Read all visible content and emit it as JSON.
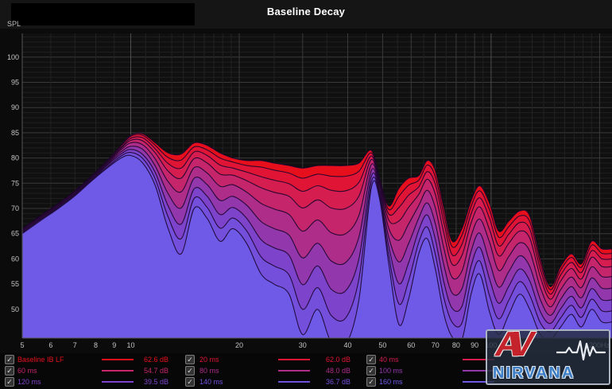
{
  "header": {
    "title": "Baseline Decay"
  },
  "axes": {
    "y_label": "SPL",
    "y_ticks": [
      100,
      95,
      90,
      85,
      80,
      75,
      70,
      65,
      60,
      55,
      50
    ],
    "x_ticks": [
      {
        "f": 5,
        "t": "5"
      },
      {
        "f": 6,
        "t": "6"
      },
      {
        "f": 7,
        "t": "7"
      },
      {
        "f": 8,
        "t": "8"
      },
      {
        "f": 9,
        "t": "9"
      },
      {
        "f": 10,
        "t": "10"
      },
      {
        "f": 20,
        "t": "20"
      },
      {
        "f": 30,
        "t": "30"
      },
      {
        "f": 40,
        "t": "40"
      },
      {
        "f": 50,
        "t": "50"
      },
      {
        "f": 60,
        "t": "60"
      },
      {
        "f": 70,
        "t": "70"
      },
      {
        "f": 80,
        "t": "80"
      },
      {
        "f": 90,
        "t": "90"
      },
      {
        "f": 100,
        "t": "100"
      },
      {
        "f": 200,
        "t": "200Hz"
      }
    ],
    "x_major_lines": [
      5,
      10,
      20,
      30,
      40,
      50,
      60,
      70,
      80,
      90,
      100,
      200
    ],
    "x_minor_lines": [
      6,
      7,
      8,
      9,
      11,
      12,
      13,
      14,
      15,
      16,
      17,
      18,
      19,
      25,
      35,
      45,
      55,
      65,
      75,
      85,
      95,
      110,
      120,
      130,
      140,
      150,
      160,
      170,
      180,
      190
    ]
  },
  "chart_data": {
    "type": "area",
    "title": "Baseline Decay",
    "xlabel": "Hz",
    "ylabel": "SPL (dB)",
    "x_scale": "log",
    "xlim": [
      5,
      208
    ],
    "ylim": [
      44.3,
      104.7
    ],
    "grid": true,
    "legend_position": "bottom",
    "frequencies": [
      5,
      5.6,
      6.3,
      7,
      7.8,
      8.6,
      9.4,
      10,
      10.8,
      11.7,
      12.7,
      13.8,
      15,
      16.3,
      17.7,
      19.2,
      21,
      23,
      25,
      27.5,
      30,
      33,
      36,
      39.5,
      43,
      46.5,
      49,
      52,
      55.5,
      59,
      63,
      66.5,
      70,
      74,
      78,
      83,
      88,
      93,
      99,
      105,
      112,
      120,
      128,
      137,
      146,
      156,
      167,
      178,
      190,
      203
    ],
    "series": [
      {
        "name": "Baseline IB LF",
        "time_ms": 0,
        "color": "#e70f1b",
        "legend_db": "62.6 dB",
        "values": [
          66,
          68.5,
          71,
          73.5,
          76.5,
          79.5,
          82.5,
          84.5,
          84.8,
          83,
          81,
          80.8,
          83,
          82.5,
          81,
          80,
          79.5,
          79.5,
          79,
          78.5,
          78,
          78.5,
          78.5,
          78.5,
          79,
          81.5,
          76,
          70.5,
          74,
          76,
          76.5,
          79.5,
          77.5,
          70,
          63.5,
          66,
          71.5,
          74.5,
          71,
          65.5,
          67.5,
          69.5,
          68.5,
          60,
          54.5,
          58.5,
          61,
          59,
          63.5,
          62
        ]
      },
      {
        "name": "20 ms",
        "time_ms": 20,
        "color": "#e01434",
        "legend_db": "62.0 dB",
        "values": [
          65.9,
          68.4,
          70.9,
          73.4,
          76.4,
          79.4,
          82.4,
          84.3,
          84.5,
          82.5,
          80.1,
          79.6,
          82.2,
          81.6,
          80,
          79.2,
          78.5,
          78.2,
          77.6,
          77,
          76,
          76.8,
          76.4,
          76.4,
          77.4,
          81,
          75.8,
          69.8,
          72.4,
          74.6,
          75.6,
          78.6,
          76.3,
          68.7,
          62.4,
          64.7,
          70.4,
          73.5,
          69.7,
          64.3,
          66.4,
          68.5,
          67.4,
          59.1,
          53.9,
          57.8,
          60.3,
          58.3,
          62.7,
          61.1
        ]
      },
      {
        "name": "40 ms",
        "time_ms": 40,
        "color": "#d51d50",
        "legend_db": "",
        "values": [
          65.9,
          68.4,
          70.9,
          73.4,
          76.4,
          79.3,
          82.1,
          83.9,
          84,
          81.8,
          78.9,
          78,
          81.2,
          80.5,
          78.6,
          78,
          77.2,
          76.3,
          75.6,
          74.9,
          73.4,
          74.5,
          73.6,
          73.5,
          75.2,
          80.4,
          75.4,
          68.9,
          70.2,
          72.6,
          74.3,
          77.3,
          74.8,
          67.1,
          60.8,
          62.9,
          68.9,
          72.1,
          68,
          62.6,
          64.9,
          67.2,
          65.9,
          57.9,
          53,
          56.8,
          59.3,
          57.3,
          61.6,
          60
        ]
      },
      {
        "name": "60 ms",
        "time_ms": 60,
        "color": "#c4256b",
        "legend_db": "54.7 dB",
        "values": [
          65.8,
          68.3,
          70.8,
          73.3,
          76.3,
          79.1,
          81.9,
          83.5,
          83.4,
          81,
          77.4,
          76,
          79.9,
          79,
          76.8,
          76.6,
          75.5,
          74.1,
          73.2,
          72.4,
          70.1,
          71.7,
          70.1,
          70,
          72.5,
          79.7,
          75,
          67.7,
          67.5,
          70.2,
          72.8,
          75.8,
          72.8,
          65,
          58.9,
          60.7,
          67.1,
          70.3,
          65.8,
          60.6,
          63.1,
          65.5,
          64.1,
          56.4,
          52,
          55.6,
          58.1,
          56,
          60.3,
          58.5
        ]
      },
      {
        "name": "80 ms",
        "time_ms": 80,
        "color": "#ad2d89",
        "legend_db": "48.0 dB",
        "values": [
          65.6,
          68.1,
          70.6,
          73.1,
          76.1,
          78.9,
          81.6,
          83,
          82.6,
          79.8,
          75.3,
          73.3,
          78.1,
          77,
          74.4,
          74.7,
          73.2,
          71,
          69.9,
          68.8,
          65.5,
          67.7,
          65.2,
          65,
          68.7,
          78.7,
          74.5,
          66.1,
          63.7,
          66.9,
          70.6,
          73.6,
          70.1,
          62,
          56.3,
          57.6,
          64.5,
          67.9,
          63.3,
          57.7,
          60.5,
          63.2,
          61.5,
          54.3,
          50.5,
          53.9,
          56.4,
          54.3,
          58.4,
          56.5
        ]
      },
      {
        "name": "100 ms",
        "time_ms": 100,
        "color": "#9338ac",
        "legend_db": "",
        "values": [
          65.5,
          68,
          70.5,
          73,
          76,
          78.7,
          81.2,
          82.3,
          81.7,
          78.4,
          72.9,
          70.1,
          76,
          74.7,
          71.6,
          72.4,
          70.6,
          67.4,
          66,
          64.7,
          60.2,
          63.1,
          59.6,
          59.3,
          64.4,
          77.5,
          73.8,
          64.3,
          59.4,
          63,
          68.1,
          71.1,
          67,
          58.7,
          53.2,
          54.1,
          61.5,
          65.1,
          59.4,
          54.4,
          57.5,
          60.6,
          58.5,
          51.9,
          48.8,
          52,
          54.5,
          52.3,
          56.2,
          54.2
        ]
      },
      {
        "name": "120 ms",
        "time_ms": 120,
        "color": "#7e43cb",
        "legend_db": "39.5 dB",
        "values": [
          65.3,
          67.8,
          70.3,
          72.8,
          75.8,
          78.5,
          80.8,
          81.7,
          80.7,
          77.1,
          70.5,
          66.9,
          73.9,
          72.4,
          68.8,
          70.2,
          68,
          63.8,
          62.2,
          60.7,
          54.9,
          58.6,
          54,
          53.7,
          60.1,
          76.3,
          73.2,
          62.5,
          55.1,
          59.2,
          65.7,
          68.7,
          63.9,
          55.3,
          50.2,
          50.6,
          58.6,
          62.3,
          56,
          51.2,
          54.6,
          58,
          55.6,
          49.5,
          47.2,
          50.1,
          52.6,
          50.3,
          54.1,
          51.9
        ]
      },
      {
        "name": "140 ms",
        "time_ms": 140,
        "color": "#744fdc",
        "legend_db": "36.7 dB",
        "values": [
          65.2,
          67.7,
          70.2,
          72.7,
          75.7,
          78.2,
          80.4,
          81.1,
          79.9,
          75.8,
          68.3,
          64,
          72,
          70.2,
          66.1,
          68.1,
          65.5,
          60.4,
          58.6,
          56.8,
          50,
          54.3,
          48.8,
          48.3,
          56.1,
          75.1,
          72.6,
          60.7,
          51.1,
          55.6,
          63.3,
          66.3,
          60.9,
          52.2,
          47.4,
          47.3,
          55.8,
          59.6,
          52.7,
          48.1,
          51.8,
          55.5,
          52.8,
          47.3,
          45.6,
          48.3,
          50.8,
          48.4,
          52,
          49.7
        ]
      },
      {
        "name": "160 ms",
        "time_ms": 160,
        "color": "#6f5ae8",
        "legend_db": "",
        "values": [
          65,
          67.5,
          70,
          72.5,
          75.5,
          78,
          80,
          80.5,
          79,
          74.5,
          66,
          61,
          70,
          68,
          63.5,
          66,
          63,
          57,
          55,
          53,
          45,
          50,
          43.5,
          43,
          52,
          74,
          72,
          59,
          47,
          52,
          61,
          64,
          58,
          49,
          44.5,
          44,
          53,
          57,
          49.5,
          45,
          49,
          53,
          50,
          45,
          44,
          46.5,
          49,
          46.5,
          50,
          47.5
        ]
      }
    ]
  },
  "legend": {
    "check_glyph": "✓",
    "all_checked": true,
    "columns": [
      [
        0,
        3,
        6
      ],
      [
        1,
        4,
        7
      ],
      [
        2,
        5,
        8
      ]
    ]
  },
  "logo": {
    "line1": "AV",
    "line2": "NIRVANA",
    "accent_color": "#c4232b",
    "blue_color": "#3c7ec6"
  }
}
